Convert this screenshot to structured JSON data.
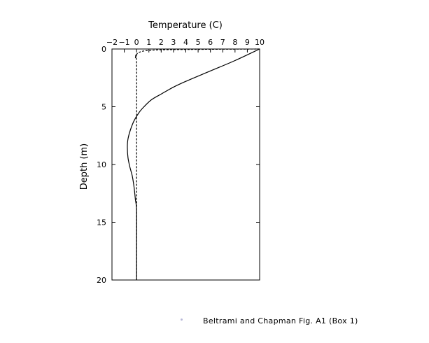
{
  "chart_data": {
    "type": "line",
    "title": "Temperature (C)",
    "xlabel": "Temperature (C)",
    "ylabel": "Depth (m)",
    "xlim": [
      -2,
      10
    ],
    "ylim": [
      0,
      20
    ],
    "y_inverted": true,
    "x_axis_position": "top",
    "grid": false,
    "x_ticks": [
      -2,
      -1,
      0,
      1,
      2,
      3,
      4,
      5,
      6,
      7,
      8,
      9,
      10
    ],
    "x_tick_labels": [
      "−2",
      "−1",
      "0",
      "1",
      "2",
      "3",
      "4",
      "5",
      "6",
      "7",
      "8",
      "9",
      "10"
    ],
    "y_ticks": [
      0,
      5,
      10,
      15,
      20
    ],
    "y_tick_labels": [
      "0",
      "5",
      "10",
      "15",
      "20"
    ],
    "series": [
      {
        "style": "solid",
        "color": "#000000",
        "x": [
          10,
          8,
          6,
          4,
          3,
          2,
          1.2,
          0.6,
          0.2,
          -0.2,
          -0.5,
          -0.7,
          -0.75,
          -0.7,
          -0.55,
          -0.35,
          -0.2,
          -0.1,
          0,
          0,
          0
        ],
        "y": [
          0,
          1,
          1.9,
          2.8,
          3.3,
          3.9,
          4.4,
          5.0,
          5.5,
          6.2,
          7.0,
          7.8,
          8.5,
          9.4,
          10.2,
          11.0,
          12.0,
          13.0,
          14.0,
          17.0,
          20.0
        ]
      },
      {
        "style": "dashed",
        "color": "#000000",
        "x": [
          10,
          3,
          1,
          0.4,
          0.1,
          0,
          -0.1,
          0,
          0,
          0
        ],
        "y": [
          0,
          0.05,
          0.12,
          0.22,
          0.35,
          0.5,
          0.8,
          1.2,
          10,
          20
        ]
      }
    ]
  },
  "caption": "Beltrami and Chapman Fig. A1 (Box 1)"
}
